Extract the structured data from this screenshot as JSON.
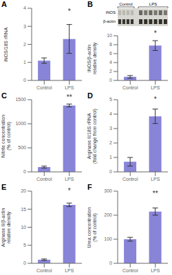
{
  "chart_data": [
    {
      "type": "bar",
      "title": "A",
      "categories": [
        "Control",
        "LPS"
      ],
      "values": [
        1.1,
        2.3
      ],
      "errors": [
        0.15,
        0.8
      ],
      "y_label": "iNOS/18S rRNA",
      "ylim": [
        0,
        4
      ],
      "yticks": [
        0,
        1,
        2,
        3,
        4
      ],
      "color": "#8884d8",
      "grid": false,
      "annotations": [
        {
          "text": "*",
          "x": "LPS",
          "y": 3.5
        }
      ]
    },
    {
      "type": "blot",
      "title": "B",
      "categories": [
        "Control",
        "LPS"
      ],
      "annotations": [
        "iNOS",
        "β-actin"
      ]
    },
    {
      "type": "bar",
      "categories": [
        "Control",
        "LPS"
      ],
      "values": [
        0.8,
        7.8
      ],
      "errors": [
        0.3,
        1.1
      ],
      "y_label": "iNOS/β-actin\nrelative density",
      "ylim": [
        0,
        10
      ],
      "yticks": [
        0,
        2,
        4,
        6,
        8,
        10
      ],
      "color": "#8884d8",
      "grid": false,
      "annotations": [
        {
          "text": "*",
          "x": "LPS",
          "y": 9.2
        }
      ]
    },
    {
      "type": "bar",
      "title": "C",
      "categories": [
        "Control",
        "LPS"
      ],
      "values": [
        100,
        1380
      ],
      "errors": [
        20,
        30
      ],
      "y_label": "Nitrite concentration\n(% of control)",
      "ylim": [
        0,
        1500
      ],
      "yticks": [
        0,
        500,
        1000,
        1500
      ],
      "color": "#8884d8",
      "grid": false,
      "annotations": [
        {
          "text": "**",
          "x": "LPS",
          "y": 1430
        }
      ]
    },
    {
      "type": "bar",
      "title": "D",
      "categories": [
        "Control",
        "LPS"
      ],
      "values": [
        0.7,
        3.85
      ],
      "errors": [
        0.3,
        0.5
      ],
      "y_label": "Arginase II/18S rRNA\n(fold change from control)",
      "ylim": [
        0,
        5
      ],
      "yticks": [
        0,
        1,
        2,
        3,
        4,
        5
      ],
      "color": "#8884d8",
      "grid": false,
      "annotations": [
        {
          "text": "*",
          "x": "LPS",
          "y": 4.6
        }
      ]
    },
    {
      "type": "bar",
      "title": "E",
      "categories": [
        "Control",
        "LPS"
      ],
      "values": [
        1.0,
        16.2
      ],
      "errors": [
        0.2,
        0.5
      ],
      "y_label": "Arginase II/β-actin\nrelative density",
      "ylim": [
        0,
        20
      ],
      "yticks": [
        0,
        5,
        10,
        15,
        20
      ],
      "color": "#8884d8",
      "grid": false,
      "annotations": [
        {
          "text": "*",
          "x": "LPS",
          "y": 18.5
        }
      ]
    },
    {
      "type": "bar",
      "title": "F",
      "categories": [
        "Control",
        "LPS"
      ],
      "values": [
        100,
        215
      ],
      "errors": [
        8,
        15
      ],
      "y_label": "Urea concentration\n(% of control)",
      "ylim": [
        0,
        300
      ],
      "yticks": [
        0,
        100,
        200,
        300
      ],
      "color": "#8884d8",
      "grid": false,
      "annotations": [
        {
          "text": "**",
          "x": "LPS",
          "y": 265
        }
      ]
    }
  ]
}
